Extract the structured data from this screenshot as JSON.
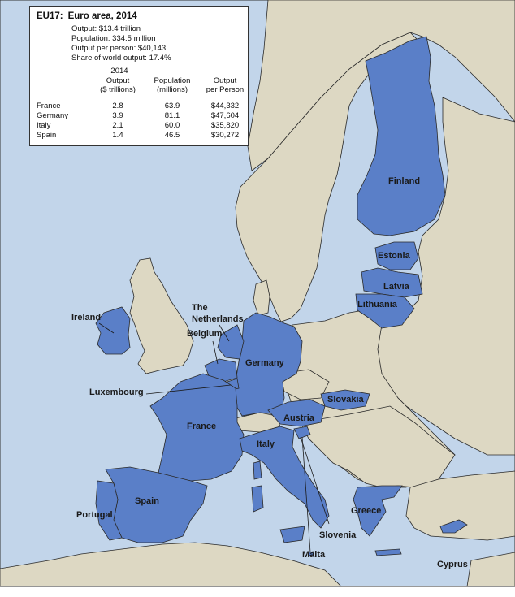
{
  "info_box": {
    "code": "EU17:",
    "title": "Euro area, 2014",
    "lines": [
      "Output: $13.4 trillion",
      "Population: 334.5 million",
      "Output per person: $40,143",
      "Share of world output: 17.4%"
    ],
    "year_label": "2014",
    "columns": [
      {
        "line1": "Output",
        "line2": "($ trillions)"
      },
      {
        "line1": "Population",
        "line2": "(millions)"
      },
      {
        "line1": "Output",
        "line2": "per Person"
      }
    ],
    "rows": [
      {
        "country": "France",
        "output": "2.8",
        "population": "63.9",
        "per_person": "$44,332"
      },
      {
        "country": "Germany",
        "output": "3.9",
        "population": "81.1",
        "per_person": "$47,604"
      },
      {
        "country": "Italy",
        "output": "2.1",
        "population": "60.0",
        "per_person": "$35,820"
      },
      {
        "country": "Spain",
        "output": "1.4",
        "population": "46.5",
        "per_person": "$30,272"
      }
    ]
  },
  "labels": {
    "finland": "Finland",
    "estonia": "Estonia",
    "latvia": "Latvia",
    "lithuania": "Lithuania",
    "ireland": "Ireland",
    "the": "The",
    "netherlands": "Netherlands",
    "belgium": "Belgium",
    "germany": "Germany",
    "luxembourg": "Luxembourg",
    "slovakia": "Slovakia",
    "austria": "Austria",
    "france": "France",
    "italy": "Italy",
    "spain": "Spain",
    "portugal": "Portugal",
    "greece": "Greece",
    "slovenia": "Slovenia",
    "malta": "Malta",
    "cyprus": "Cyprus"
  },
  "colors": {
    "sea": "#c2d5ea",
    "land": "#ddd8c3",
    "euro_area": "#5a7fc8",
    "border": "#2a2a2a"
  }
}
